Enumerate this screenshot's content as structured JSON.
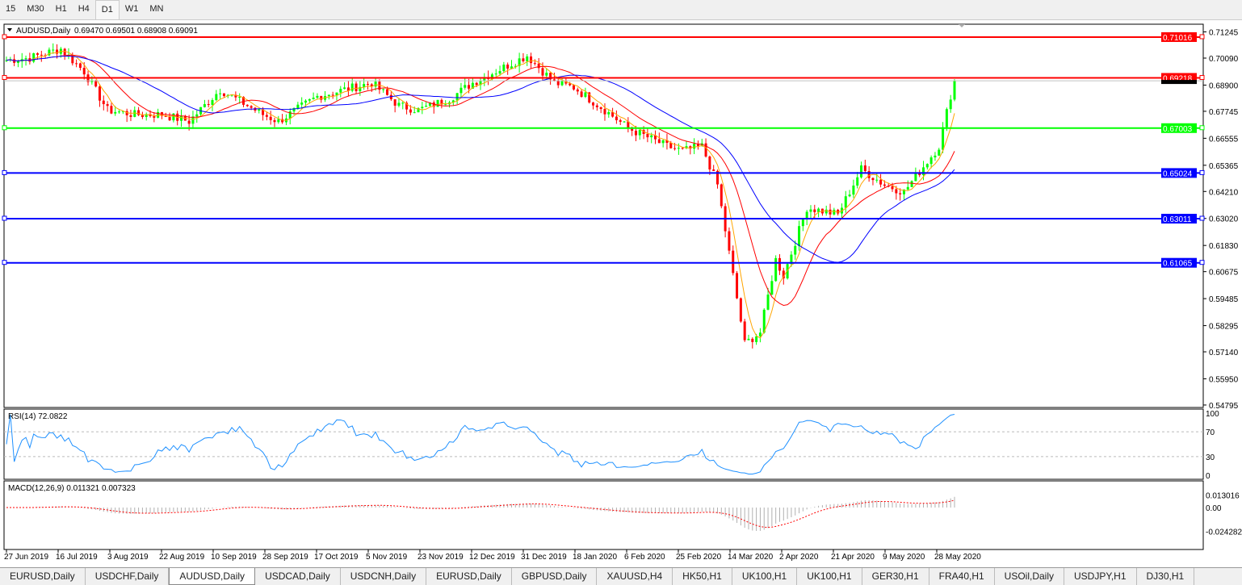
{
  "timeframes": [
    "15",
    "M30",
    "H1",
    "H4",
    "D1",
    "W1",
    "MN"
  ],
  "active_timeframe": "D1",
  "chart": {
    "title": "AUDUSD,Daily",
    "ohlc": "0.69470 0.69501 0.68908 0.69091",
    "price_ticks": [
      "0.71245",
      "0.70090",
      "0.68900",
      "0.67745",
      "0.66555",
      "0.65365",
      "0.64210",
      "0.63020",
      "0.61830",
      "0.60675",
      "0.59485",
      "0.58295",
      "0.57140",
      "0.55950",
      "0.54795"
    ],
    "current_price": "0.69091",
    "levels": [
      {
        "price": 0.71016,
        "label": "0.71016",
        "color": "#ff0000"
      },
      {
        "price": 0.69218,
        "label": "0.69218",
        "color": "#ff0000"
      },
      {
        "price": 0.67003,
        "label": "0.67003",
        "color": "#00ff00"
      },
      {
        "price": 0.65024,
        "label": "0.65024",
        "color": "#0000ff"
      },
      {
        "price": 0.63011,
        "label": "0.63011",
        "color": "#0000ff"
      },
      {
        "price": 0.61065,
        "label": "0.61065",
        "color": "#0000ff"
      }
    ],
    "date_labels": [
      "27 Jun 2019",
      "16 Jul 2019",
      "3 Aug 2019",
      "22 Aug 2019",
      "10 Sep 2019",
      "28 Sep 2019",
      "17 Oct 2019",
      "5 Nov 2019",
      "23 Nov 2019",
      "12 Dec 2019",
      "31 Dec 2019",
      "18 Jan 2020",
      "6 Feb 2020",
      "25 Feb 2020",
      "14 Mar 2020",
      "2 Apr 2020",
      "21 Apr 2020",
      "9 May 2020",
      "28 May 2020"
    ],
    "rsi": {
      "label": "RSI(14) 72.0822",
      "ticks": [
        "100",
        "70",
        "30",
        "0"
      ]
    },
    "macd": {
      "label": "MACD(12,26,9) 0.011321 0.007323",
      "ticks": [
        "0.013016",
        "0.00",
        "-0.024282"
      ]
    },
    "colors": {
      "bull": "#00ff00",
      "bear": "#ff0000",
      "ma_fast": "#ffa500",
      "ma_mid": "#ff0000",
      "ma_slow": "#0000ff",
      "rsi": "#1e90ff"
    }
  },
  "chart_data": {
    "type": "line",
    "series": [
      {
        "values_note_free": true,
        "points": [
          [
            "2019-06-27",
            0.7
          ],
          [
            "2019-07-05",
            0.701
          ],
          [
            "2019-07-16",
            0.705
          ],
          [
            "2019-07-25",
            0.695
          ],
          [
            "2019-08-03",
            0.678
          ],
          [
            "2019-08-12",
            0.676
          ],
          [
            "2019-08-22",
            0.676
          ],
          [
            "2019-09-01",
            0.673
          ],
          [
            "2019-09-12",
            0.687
          ],
          [
            "2019-09-28",
            0.676
          ],
          [
            "2019-10-03",
            0.673
          ],
          [
            "2019-10-17",
            0.684
          ],
          [
            "2019-11-05",
            0.69
          ],
          [
            "2019-11-15",
            0.68
          ],
          [
            "2019-11-23",
            0.678
          ],
          [
            "2019-12-03",
            0.683
          ],
          [
            "2019-12-12",
            0.69
          ],
          [
            "2019-12-31",
            0.702
          ],
          [
            "2020-01-10",
            0.69
          ],
          [
            "2020-01-18",
            0.688
          ],
          [
            "2020-01-28",
            0.678
          ],
          [
            "2020-02-06",
            0.67
          ],
          [
            "2020-02-20",
            0.662
          ],
          [
            "2020-02-25",
            0.66
          ],
          [
            "2020-03-04",
            0.662
          ],
          [
            "2020-03-09",
            0.645
          ],
          [
            "2020-03-12",
            0.625
          ],
          [
            "2020-03-19",
            0.575
          ],
          [
            "2020-03-24",
            0.58
          ],
          [
            "2020-03-30",
            0.612
          ],
          [
            "2020-04-02",
            0.605
          ],
          [
            "2020-04-10",
            0.635
          ],
          [
            "2020-04-21",
            0.632
          ],
          [
            "2020-04-30",
            0.652
          ],
          [
            "2020-05-09",
            0.645
          ],
          [
            "2020-05-15",
            0.642
          ],
          [
            "2020-05-28",
            0.662
          ],
          [
            "2020-06-02",
            0.692
          ],
          [
            "2020-06-03",
            0.69091
          ]
        ]
      }
    ],
    "ylim": [
      0.54795,
      0.71245
    ]
  },
  "symbol_tabs": [
    "EURUSD,Daily",
    "USDCHF,Daily",
    "AUDUSD,Daily",
    "USDCAD,Daily",
    "USDCNH,Daily",
    "EURUSD,Daily",
    "GBPUSD,Daily",
    "XAUUSD,H4",
    "HK50,H1",
    "UK100,H1",
    "UK100,H1",
    "GER30,H1",
    "FRA40,H1",
    "USOil,Daily",
    "USDJPY,H1",
    "DJ30,H1"
  ],
  "active_symbol_tab": "AUDUSD,Daily"
}
